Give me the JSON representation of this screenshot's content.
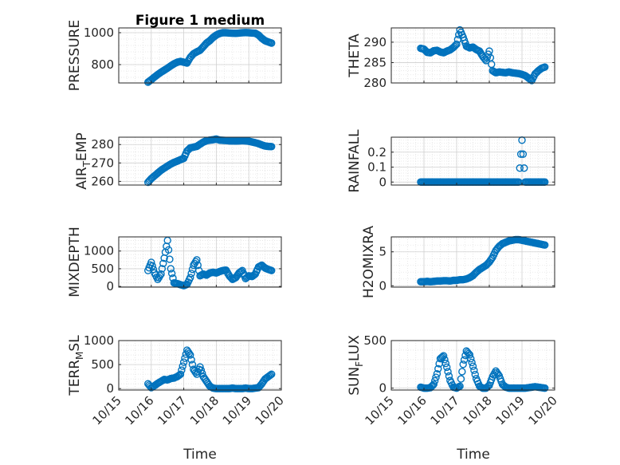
{
  "figure": {
    "title": "Figure 1 medium",
    "xlabel": "Time"
  },
  "colors": {
    "marker": "#0072BD",
    "axis": "#262626",
    "grid": "#d0d0d0",
    "minor_grid": "#e3e3e3"
  },
  "chart_data": [
    {
      "type": "scatter",
      "ylabel": "PRESSURE",
      "ylim": [
        685,
        1030
      ],
      "yticks": [
        800,
        1000
      ],
      "ytick_labels": [
        "800",
        "1000"
      ],
      "x": [
        15.9,
        16.0,
        16.1,
        16.2,
        16.3,
        16.4,
        16.5,
        16.6,
        16.7,
        16.8,
        16.9,
        17.0,
        17.1,
        17.2,
        17.3,
        17.4,
        17.5,
        17.6,
        17.7,
        17.8,
        17.9,
        18.0,
        18.1,
        18.2,
        18.3,
        18.4,
        18.5,
        18.6,
        18.7,
        18.8,
        18.9,
        19.0,
        19.1,
        19.2,
        19.3,
        19.4,
        19.5,
        19.6,
        19.7
      ],
      "y": [
        690,
        705,
        722,
        738,
        752,
        765,
        778,
        792,
        805,
        815,
        820,
        815,
        810,
        845,
        868,
        880,
        890,
        912,
        935,
        950,
        970,
        985,
        995,
        1000,
        1000,
        998,
        997,
        996,
        998,
        1000,
        1001,
        1000,
        998,
        997,
        985,
        965,
        950,
        942,
        935
      ]
    },
    {
      "type": "scatter",
      "ylabel": "THETA",
      "ylim": [
        280,
        293.5
      ],
      "yticks": [
        280,
        285,
        290
      ],
      "ytick_labels": [
        "280",
        "285",
        "290"
      ],
      "x": [
        15.9,
        16.0,
        16.1,
        16.2,
        16.3,
        16.4,
        16.5,
        16.6,
        16.7,
        16.8,
        16.9,
        17.0,
        17.1,
        17.2,
        17.3,
        17.4,
        17.5,
        17.6,
        17.7,
        17.8,
        17.9,
        18.0,
        18.1,
        18.2,
        18.3,
        18.4,
        18.5,
        18.6,
        18.7,
        18.8,
        18.9,
        19.0,
        19.1,
        19.2,
        19.3,
        19.4,
        19.5,
        19.6,
        19.7
      ],
      "y": [
        288.5,
        288.3,
        287.5,
        287.4,
        287.9,
        288.0,
        287.6,
        287.4,
        287.8,
        288.1,
        288.7,
        289.5,
        293.0,
        291.2,
        289.0,
        288.6,
        288.8,
        288.2,
        287.8,
        286.5,
        285.5,
        287.8,
        283.0,
        282.5,
        282.7,
        282.6,
        282.5,
        282.7,
        282.5,
        282.4,
        282.3,
        282.1,
        281.8,
        281.2,
        280.6,
        282.2,
        283.0,
        283.6,
        283.9
      ]
    },
    {
      "type": "scatter",
      "ylabel": "AIR_TEMP",
      "ylim": [
        258,
        284
      ],
      "yticks": [
        260,
        270,
        280
      ],
      "ytick_labels": [
        "260",
        "270",
        "280"
      ],
      "x": [
        15.9,
        16.0,
        16.1,
        16.2,
        16.3,
        16.4,
        16.5,
        16.6,
        16.7,
        16.8,
        16.9,
        17.0,
        17.1,
        17.2,
        17.3,
        17.4,
        17.5,
        17.6,
        17.7,
        17.8,
        17.9,
        18.0,
        18.1,
        18.2,
        18.3,
        18.4,
        18.5,
        18.6,
        18.7,
        18.8,
        18.9,
        19.0,
        19.1,
        19.2,
        19.3,
        19.4,
        19.5,
        19.6,
        19.7
      ],
      "y": [
        259.5,
        261.5,
        263.0,
        264.5,
        266.0,
        267.2,
        268.3,
        269.4,
        270.3,
        271.0,
        271.8,
        272.5,
        276.5,
        278.2,
        278.6,
        279.0,
        280.2,
        281.3,
        282.1,
        282.4,
        282.6,
        283.0,
        282.4,
        282.3,
        282.2,
        282.0,
        282.0,
        281.9,
        282.0,
        282.1,
        282.0,
        281.8,
        281.4,
        281.0,
        280.5,
        279.8,
        279.2,
        279.0,
        278.9
      ]
    },
    {
      "type": "scatter",
      "ylabel": "RAINFALL",
      "ylim": [
        -0.02,
        0.3
      ],
      "yticks": [
        0,
        0.1,
        0.2
      ],
      "ytick_labels": [
        "0",
        "0.1",
        "0.2"
      ],
      "x": [
        15.9,
        16.0,
        16.1,
        16.2,
        16.3,
        16.4,
        16.5,
        16.6,
        16.7,
        16.8,
        16.9,
        17.0,
        17.1,
        17.2,
        17.3,
        17.4,
        17.5,
        17.6,
        17.7,
        17.8,
        17.9,
        18.0,
        18.1,
        18.2,
        18.3,
        18.4,
        18.5,
        18.6,
        18.7,
        18.8,
        18.9,
        19.0,
        19.1,
        19.2,
        19.3,
        19.4,
        19.5,
        19.6,
        19.7
      ],
      "y": [
        0,
        0,
        0,
        0,
        0,
        0,
        0,
        0,
        0,
        0,
        0,
        0,
        0,
        0,
        0,
        0,
        0,
        0,
        0,
        0,
        0,
        0,
        0,
        0,
        0,
        0,
        0,
        0,
        0,
        0,
        0,
        0.28,
        0,
        0,
        0,
        0,
        0,
        0,
        0
      ]
    },
    {
      "type": "scatter",
      "ylabel": "MIXDEPTH",
      "ylim": [
        -20,
        1400
      ],
      "yticks": [
        0,
        500,
        1000
      ],
      "ytick_labels": [
        "0",
        "500",
        "1000"
      ],
      "x": [
        15.9,
        16.0,
        16.1,
        16.2,
        16.3,
        16.4,
        16.5,
        16.6,
        16.7,
        16.8,
        16.9,
        17.0,
        17.1,
        17.2,
        17.3,
        17.4,
        17.5,
        17.6,
        17.7,
        17.8,
        17.9,
        18.0,
        18.1,
        18.2,
        18.3,
        18.4,
        18.5,
        18.6,
        18.7,
        18.8,
        18.9,
        19.0,
        19.1,
        19.2,
        19.3,
        19.4,
        19.5,
        19.6,
        19.7
      ],
      "y": [
        450,
        680,
        380,
        200,
        350,
        800,
        1300,
        500,
        100,
        80,
        50,
        20,
        60,
        250,
        600,
        750,
        300,
        350,
        320,
        380,
        400,
        380,
        420,
        450,
        460,
        300,
        200,
        250,
        380,
        450,
        220,
        300,
        280,
        350,
        550,
        600,
        520,
        480,
        450
      ]
    },
    {
      "type": "scatter",
      "ylabel": "H2OMIXRA",
      "ylim": [
        -0.2,
        7.2
      ],
      "yticks": [
        0,
        5
      ],
      "ytick_labels": [
        "0",
        "5"
      ],
      "x": [
        15.9,
        16.0,
        16.1,
        16.2,
        16.3,
        16.4,
        16.5,
        16.6,
        16.7,
        16.8,
        16.9,
        17.0,
        17.1,
        17.2,
        17.3,
        17.4,
        17.5,
        17.6,
        17.7,
        17.8,
        17.9,
        18.0,
        18.1,
        18.2,
        18.3,
        18.4,
        18.5,
        18.6,
        18.7,
        18.8,
        18.9,
        19.0,
        19.1,
        19.2,
        19.3,
        19.4,
        19.5,
        19.6,
        19.7
      ],
      "y": [
        0.6,
        0.6,
        0.65,
        0.6,
        0.65,
        0.7,
        0.7,
        0.75,
        0.75,
        0.7,
        0.8,
        0.8,
        0.9,
        0.9,
        1.0,
        1.2,
        1.5,
        2.0,
        2.4,
        2.7,
        3.0,
        3.5,
        4.2,
        5.2,
        5.8,
        6.2,
        6.4,
        6.6,
        6.7,
        6.8,
        6.8,
        6.7,
        6.6,
        6.5,
        6.4,
        6.3,
        6.2,
        6.1,
        6.0
      ]
    },
    {
      "type": "scatter",
      "ylabel": "TERR_MSL",
      "ylim": [
        -30,
        1000
      ],
      "yticks": [
        0,
        500,
        1000
      ],
      "ytick_labels": [
        "0",
        "500",
        "1000"
      ],
      "x": [
        15.9,
        16.0,
        16.1,
        16.2,
        16.3,
        16.4,
        16.5,
        16.6,
        16.7,
        16.8,
        16.9,
        17.0,
        17.1,
        17.2,
        17.3,
        17.4,
        17.5,
        17.6,
        17.7,
        17.8,
        17.9,
        18.0,
        18.1,
        18.2,
        18.3,
        18.4,
        18.5,
        18.6,
        18.7,
        18.8,
        18.9,
        19.0,
        19.1,
        19.2,
        19.3,
        19.4,
        19.5,
        19.6,
        19.7
      ],
      "y": [
        100,
        20,
        60,
        110,
        150,
        190,
        180,
        210,
        220,
        250,
        300,
        550,
        800,
        700,
        400,
        300,
        450,
        250,
        150,
        50,
        10,
        0,
        0,
        0,
        0,
        0,
        10,
        0,
        0,
        0,
        10,
        0,
        0,
        10,
        20,
        100,
        200,
        250,
        300
      ]
    },
    {
      "type": "scatter",
      "ylabel": "SUN_FLUX",
      "ylim": [
        -20,
        500
      ],
      "yticks": [
        0,
        500
      ],
      "ytick_labels": [
        "0",
        "500"
      ],
      "x": [
        15.9,
        16.0,
        16.1,
        16.2,
        16.3,
        16.4,
        16.5,
        16.6,
        16.7,
        16.8,
        16.9,
        17.0,
        17.1,
        17.2,
        17.3,
        17.4,
        17.5,
        17.6,
        17.7,
        17.8,
        17.9,
        18.0,
        18.1,
        18.2,
        18.3,
        18.4,
        18.5,
        18.6,
        18.7,
        18.8,
        18.9,
        19.0,
        19.1,
        19.2,
        19.3,
        19.4,
        19.5,
        19.6,
        19.7
      ],
      "y": [
        10,
        0,
        0,
        5,
        40,
        150,
        310,
        340,
        220,
        80,
        10,
        0,
        20,
        250,
        390,
        350,
        230,
        100,
        20,
        0,
        0,
        30,
        120,
        180,
        130,
        40,
        10,
        0,
        0,
        0,
        0,
        0,
        0,
        5,
        10,
        15,
        10,
        5,
        0
      ]
    }
  ],
  "x_axis": {
    "lim": [
      15,
      20
    ],
    "ticks": [
      15,
      16,
      17,
      18,
      19,
      20
    ],
    "tick_labels": [
      "10/15",
      "10/16",
      "10/17",
      "10/18",
      "10/19",
      "10/20"
    ]
  }
}
